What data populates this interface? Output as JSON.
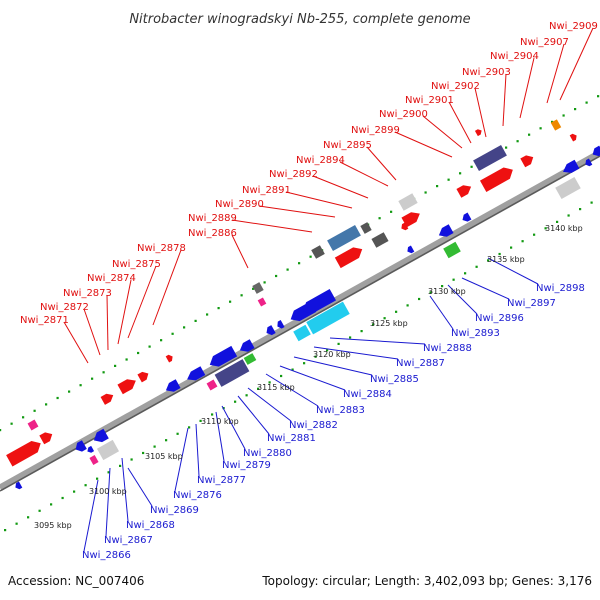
{
  "title": "Nitrobacter winogradskyi Nb-255, complete genome",
  "footer": {
    "accession": "Accession: NC_007406",
    "summary": "Topology: circular; Length: 3,402,093 bp; Genes: 3,176"
  },
  "colors": {
    "forward": "#ee1111",
    "reverse": "#1111dd",
    "backbone": "#a0a0a0",
    "dots": "#119911",
    "leader_red": "#e01010",
    "leader_blue": "#1a1ad0"
  },
  "ticks": [
    "3095 kbp",
    "3100 kbp",
    "3105 kbp",
    "3110 kbp",
    "3115 kbp",
    "3120 kbp",
    "3125 kbp",
    "3130 kbp",
    "3135 kbp",
    "3140 kbp"
  ],
  "forward_genes": [
    "Nwi_2871",
    "Nwi_2872",
    "Nwi_2873",
    "Nwi_2874",
    "Nwi_2875",
    "Nwi_2878",
    "Nwi_2886",
    "Nwi_2889",
    "Nwi_2890",
    "Nwi_2891",
    "Nwi_2892",
    "Nwi_2894",
    "Nwi_2895",
    "Nwi_2899",
    "Nwi_2900",
    "Nwi_2901",
    "Nwi_2902",
    "Nwi_2903",
    "Nwi_2904",
    "Nwi_2907",
    "Nwi_2909"
  ],
  "reverse_genes": [
    "Nwi_2866",
    "Nwi_2867",
    "Nwi_2868",
    "Nwi_2869",
    "Nwi_2876",
    "Nwi_2877",
    "Nwi_2879",
    "Nwi_2880",
    "Nwi_2881",
    "Nwi_2882",
    "Nwi_2883",
    "Nwi_2884",
    "Nwi_2885",
    "Nwi_2887",
    "Nwi_2888",
    "Nwi_2893",
    "Nwi_2896",
    "Nwi_2897",
    "Nwi_2898"
  ]
}
